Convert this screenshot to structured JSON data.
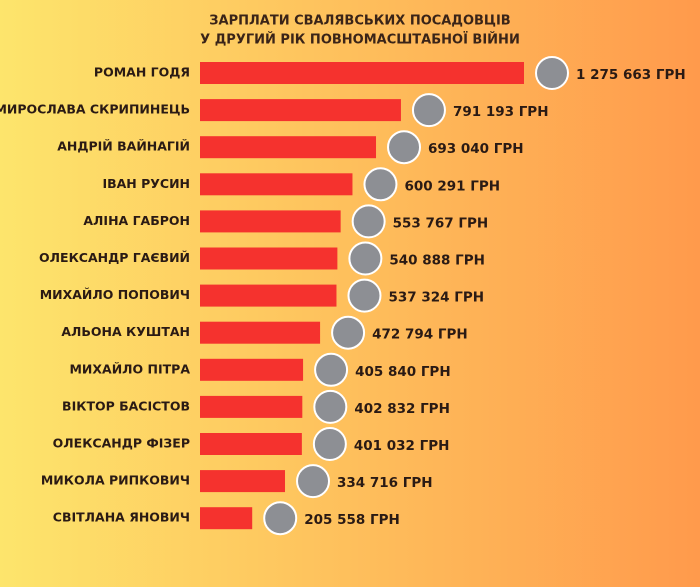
{
  "chart_data": {
    "type": "bar",
    "orientation": "horizontal",
    "title": [
      "ЗАРПЛАТИ СВАЛЯВСЬКИХ ПОСАДОВЦІВ",
      "У ДРУГИЙ РІК ПОВНОМАСШТАБНОЇ ВІЙНИ"
    ],
    "categories": [
      "РОМАН ГОДЯ",
      "МИРОСЛАВА СКРИПИНЕЦЬ",
      "АНДРІЙ ВАЙНАГІЙ",
      "ІВАН РУСИН",
      "АЛІНА ГАБРОН",
      "ОЛЕКСАНДР ГАЄВИЙ",
      "МИХАЙЛО ПОПОВИЧ",
      "АЛЬОНА КУШТАН",
      "МИХАЙЛО ПІТРА",
      "ВІКТОР БАСІСТОВ",
      "ОЛЕКСАНДР ФІЗЕР",
      "МИКОЛА РИПКОВИЧ",
      "СВІТЛАНА ЯНОВИЧ"
    ],
    "values": [
      1275663,
      791193,
      693040,
      600291,
      553767,
      540888,
      537324,
      472794,
      405840,
      402832,
      401032,
      334716,
      205558
    ],
    "value_labels": [
      "1 275 663 ГРН",
      "791 193 ГРН",
      "693 040 ГРН",
      "600 291 ГРН",
      "553 767 ГРН",
      "540 888 ГРН",
      "537 324 ГРН",
      "472 794 ГРН",
      "405 840 ГРН",
      "402 832 ГРН",
      "401 032 ГРН",
      "334 716 ГРН",
      "205 558 ГРН"
    ],
    "color": "#f5322e"
  }
}
